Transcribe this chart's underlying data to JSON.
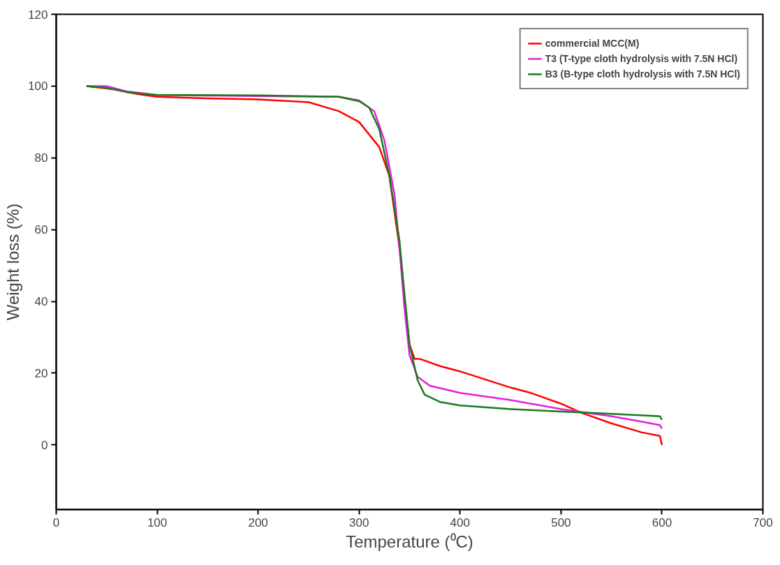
{
  "chart_data": {
    "type": "line",
    "xlabel": "Temperature (⁰C)",
    "ylabel": "Weight loss (%)",
    "xlim": [
      0,
      700
    ],
    "ylim": [
      -18,
      120
    ],
    "xticks": [
      0,
      100,
      200,
      300,
      400,
      500,
      600,
      700
    ],
    "yticks": [
      0,
      20,
      40,
      60,
      80,
      100,
      120
    ],
    "grid": false,
    "legend": "top right",
    "line_style": "solid",
    "marker": "none",
    "series": [
      {
        "name": "commercial MCC(M)",
        "color": "#ff0000",
        "x": [
          30,
          60,
          80,
          100,
          150,
          200,
          250,
          280,
          300,
          320,
          330,
          340,
          345,
          350,
          355,
          360,
          380,
          400,
          450,
          470,
          500,
          520,
          550,
          580,
          598,
          600
        ],
        "values": [
          100,
          99,
          97.8,
          97,
          96.6,
          96.3,
          95.5,
          93,
          90,
          83,
          75,
          55,
          40,
          28,
          24,
          24,
          22,
          20.5,
          16,
          14.5,
          11.5,
          9,
          6,
          3.5,
          2.5,
          0
        ]
      },
      {
        "name": "T3 (T-type cloth hydrolysis with 7.5N HCl)",
        "color": "#e020e0",
        "x": [
          30,
          50,
          70,
          100,
          200,
          280,
          300,
          315,
          325,
          335,
          340,
          345,
          350,
          358,
          370,
          400,
          450,
          500,
          550,
          580,
          598,
          600
        ],
        "values": [
          100,
          100,
          98.5,
          97.5,
          97.2,
          97,
          96,
          93,
          85,
          70,
          55,
          38,
          25,
          19,
          16.5,
          14.5,
          12.5,
          10,
          8,
          6.5,
          5.5,
          4.5
        ]
      },
      {
        "name": "B3 (B-type cloth hydrolysis with 7.5N HCl)",
        "color": "#1a7a1a",
        "x": [
          30,
          50,
          70,
          100,
          200,
          280,
          300,
          310,
          320,
          330,
          340,
          345,
          350,
          358,
          365,
          380,
          400,
          450,
          500,
          550,
          598,
          600
        ],
        "values": [
          100,
          99.5,
          98.3,
          97.5,
          97.4,
          97,
          95.8,
          94,
          88,
          75,
          57,
          42,
          28,
          18,
          14,
          12,
          11,
          10,
          9.3,
          8.7,
          8,
          7
        ]
      }
    ]
  }
}
